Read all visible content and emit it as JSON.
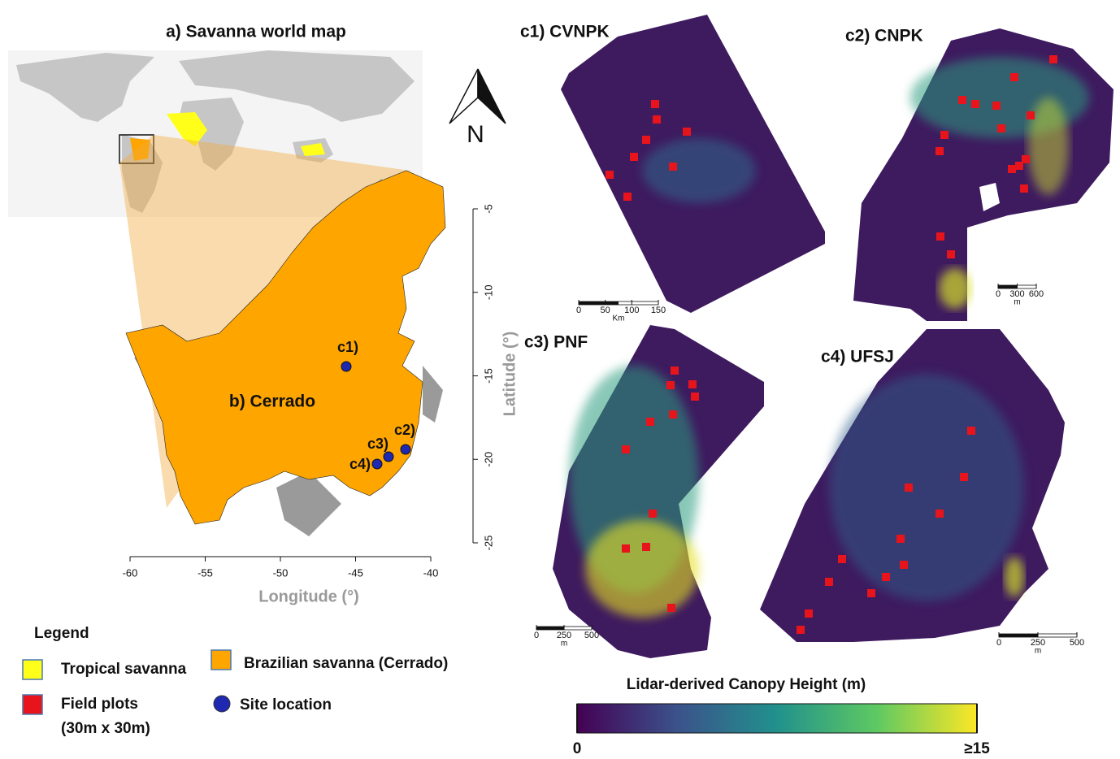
{
  "panel_a": {
    "title": "a) Savanna world map"
  },
  "north": "N",
  "panel_b": {
    "label": "b) Cerrado",
    "x_label": "Longitude (°)",
    "y_label": "Latitude (°)",
    "xlim": [
      -60,
      -40
    ],
    "xticks": [
      -60,
      -55,
      -50,
      -45,
      -40
    ],
    "ylim": [
      -25,
      -5
    ],
    "yticks": [
      -5,
      -10,
      -15,
      -20,
      -25
    ],
    "sites": [
      "c1)",
      "c2)",
      "c3)",
      "c4)"
    ]
  },
  "panels": [
    {
      "title": "c1) CVNPK",
      "scale_ticks": [
        0,
        50,
        100,
        150
      ],
      "scale_unit": "Km"
    },
    {
      "title": "c2) CNPK",
      "scale_ticks": [
        0,
        300,
        600
      ],
      "scale_unit": "m"
    },
    {
      "title": "c3) PNF",
      "scale_ticks": [
        0,
        250,
        500
      ],
      "scale_unit": "m"
    },
    {
      "title": "c4) UFSJ",
      "scale_ticks": [
        0,
        250,
        500
      ],
      "scale_unit": "m"
    }
  ],
  "colorbar": {
    "title": "Lidar-derived Canopy Height (m)",
    "lim": [
      0,
      15
    ],
    "ticks": [
      0,
      {
        "value": 15,
        "label": "≥15"
      }
    ]
  },
  "legend": {
    "title": "Legend",
    "items": [
      {
        "label": "Tropical savanna",
        "color": "#ffff1a"
      },
      {
        "label": "Brazilian savanna (Cerrado)",
        "color": "#ffa500"
      },
      {
        "label": [
          "Field plots",
          "(30m x 30m)"
        ],
        "color": "#e8141c"
      },
      {
        "label": "Site location",
        "color": "#1f28b0"
      }
    ]
  }
}
